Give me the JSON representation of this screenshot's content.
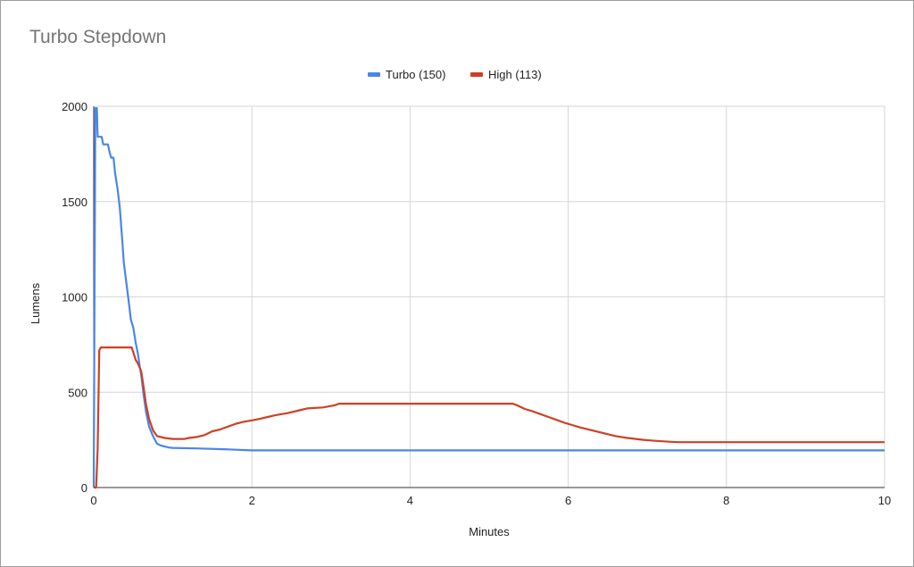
{
  "chart_data": {
    "type": "line",
    "title": "Turbo Stepdown",
    "xlabel": "Minutes",
    "ylabel": "Lumens",
    "xlim": [
      0,
      10
    ],
    "ylim": [
      0,
      2000
    ],
    "x_ticks": [
      0,
      2,
      4,
      6,
      8,
      10
    ],
    "y_ticks": [
      0,
      500,
      1000,
      1500,
      2000
    ],
    "grid": true,
    "legend_position": "top-center",
    "series": [
      {
        "name": "Turbo (150)",
        "color": "#4a86e8",
        "points": [
          [
            0,
            0
          ],
          [
            0.02,
            1990
          ],
          [
            0.04,
            1990
          ],
          [
            0.05,
            1840
          ],
          [
            0.1,
            1840
          ],
          [
            0.12,
            1800
          ],
          [
            0.18,
            1800
          ],
          [
            0.2,
            1760
          ],
          [
            0.22,
            1730
          ],
          [
            0.25,
            1730
          ],
          [
            0.27,
            1650
          ],
          [
            0.3,
            1570
          ],
          [
            0.33,
            1470
          ],
          [
            0.36,
            1300
          ],
          [
            0.38,
            1180
          ],
          [
            0.42,
            1050
          ],
          [
            0.45,
            950
          ],
          [
            0.47,
            880
          ],
          [
            0.5,
            840
          ],
          [
            0.53,
            760
          ],
          [
            0.56,
            700
          ],
          [
            0.58,
            640
          ],
          [
            0.6,
            590
          ],
          [
            0.63,
            490
          ],
          [
            0.66,
            400
          ],
          [
            0.7,
            320
          ],
          [
            0.75,
            270
          ],
          [
            0.8,
            230
          ],
          [
            0.85,
            220
          ],
          [
            0.9,
            215
          ],
          [
            0.95,
            210
          ],
          [
            1.0,
            208
          ],
          [
            1.3,
            205
          ],
          [
            1.7,
            200
          ],
          [
            2.0,
            195
          ],
          [
            5.0,
            195
          ],
          [
            10,
            195
          ]
        ]
      },
      {
        "name": "High (113)",
        "color": "#cc4125",
        "points": [
          [
            0,
            0
          ],
          [
            0.03,
            0
          ],
          [
            0.05,
            200
          ],
          [
            0.07,
            720
          ],
          [
            0.09,
            735
          ],
          [
            0.48,
            735
          ],
          [
            0.5,
            710
          ],
          [
            0.53,
            670
          ],
          [
            0.56,
            650
          ],
          [
            0.6,
            610
          ],
          [
            0.63,
            530
          ],
          [
            0.66,
            440
          ],
          [
            0.7,
            360
          ],
          [
            0.75,
            300
          ],
          [
            0.8,
            270
          ],
          [
            0.9,
            260
          ],
          [
            1.0,
            255
          ],
          [
            1.15,
            255
          ],
          [
            1.2,
            260
          ],
          [
            1.3,
            265
          ],
          [
            1.4,
            275
          ],
          [
            1.5,
            295
          ],
          [
            1.6,
            305
          ],
          [
            1.7,
            320
          ],
          [
            1.8,
            335
          ],
          [
            1.9,
            345
          ],
          [
            2.0,
            352
          ],
          [
            2.1,
            360
          ],
          [
            2.2,
            370
          ],
          [
            2.3,
            380
          ],
          [
            2.45,
            390
          ],
          [
            2.6,
            405
          ],
          [
            2.7,
            415
          ],
          [
            2.9,
            420
          ],
          [
            3.05,
            432
          ],
          [
            3.1,
            440
          ],
          [
            5.3,
            440
          ],
          [
            5.35,
            432
          ],
          [
            5.45,
            412
          ],
          [
            5.55,
            400
          ],
          [
            5.65,
            385
          ],
          [
            5.75,
            370
          ],
          [
            5.85,
            355
          ],
          [
            5.95,
            340
          ],
          [
            6.05,
            328
          ],
          [
            6.15,
            315
          ],
          [
            6.3,
            300
          ],
          [
            6.45,
            285
          ],
          [
            6.6,
            270
          ],
          [
            6.75,
            260
          ],
          [
            6.95,
            250
          ],
          [
            7.1,
            245
          ],
          [
            7.3,
            240
          ],
          [
            7.4,
            238
          ],
          [
            10,
            238
          ]
        ]
      }
    ]
  }
}
